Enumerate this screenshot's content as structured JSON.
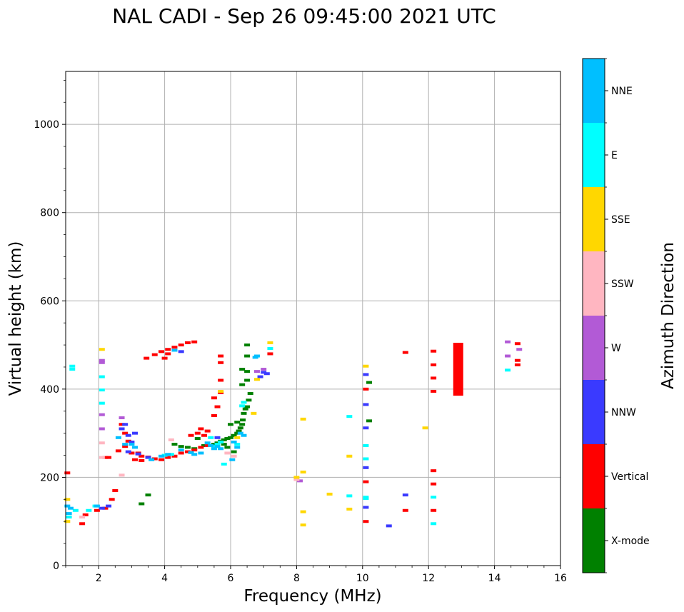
{
  "chart_data": {
    "type": "scatter",
    "title": "NAL CADI - Sep 26 09:45:00 2021 UTC",
    "xlabel": "Frequency (MHz)",
    "ylabel": "Virtual height (km)",
    "xlim": [
      1,
      16
    ],
    "ylim": [
      0,
      1120
    ],
    "xticks": [
      2,
      4,
      6,
      8,
      10,
      12,
      14,
      16
    ],
    "xtick_labels": [
      "2",
      "4",
      "6",
      "8",
      "10",
      "12",
      "14",
      "16"
    ],
    "yticks": [
      0,
      200,
      400,
      600,
      800,
      1000
    ],
    "ytick_labels": [
      "0",
      "200",
      "400",
      "600",
      "800",
      "1000"
    ],
    "grid": true,
    "colorbar": {
      "label": "Azimuth Direction",
      "categories": [
        "X-mode",
        "Vertical",
        "NNW",
        "W",
        "SSW",
        "SSE",
        "E",
        "NNE"
      ],
      "colors": [
        "#008000",
        "#ff0000",
        "#3a3aff",
        "#b25ad6",
        "#ffb6c1",
        "#ffd700",
        "#00ffff",
        "#00bfff"
      ]
    },
    "series": [
      {
        "name": "X-mode",
        "points": [
          [
            4.5,
            270
          ],
          [
            4.7,
            268
          ],
          [
            5.2,
            272
          ],
          [
            5.5,
            275
          ],
          [
            5.6,
            278
          ],
          [
            5.7,
            282
          ],
          [
            5.8,
            285
          ],
          [
            5.9,
            288
          ],
          [
            6.0,
            290
          ],
          [
            6.1,
            295
          ],
          [
            6.2,
            300
          ],
          [
            6.25,
            305
          ],
          [
            6.3,
            312
          ],
          [
            6.35,
            320
          ],
          [
            6.37,
            330
          ],
          [
            6.4,
            345
          ],
          [
            6.45,
            355
          ],
          [
            6.5,
            360
          ],
          [
            6.55,
            375
          ],
          [
            6.6,
            390
          ],
          [
            6.35,
            410
          ],
          [
            6.5,
            420
          ],
          [
            6.35,
            445
          ],
          [
            6.5,
            440
          ],
          [
            6.5,
            475
          ],
          [
            6.5,
            500
          ],
          [
            6.2,
            325
          ],
          [
            6.0,
            320
          ],
          [
            6.1,
            258
          ],
          [
            5.8,
            275
          ],
          [
            5.9,
            268
          ],
          [
            3.5,
            160
          ],
          [
            3.3,
            140
          ],
          [
            4.3,
            275
          ],
          [
            4.9,
            265
          ],
          [
            5.0,
            288
          ],
          [
            10.2,
            415
          ],
          [
            10.2,
            328
          ]
        ]
      },
      {
        "name": "Vertical",
        "points": [
          [
            1.05,
            210
          ],
          [
            1.5,
            95
          ],
          [
            1.6,
            115
          ],
          [
            1.95,
            125
          ],
          [
            2.2,
            130
          ],
          [
            2.4,
            150
          ],
          [
            2.5,
            170
          ],
          [
            2.3,
            245
          ],
          [
            2.2,
            245
          ],
          [
            2.6,
            260
          ],
          [
            2.8,
            270
          ],
          [
            2.9,
            282
          ],
          [
            3.0,
            255
          ],
          [
            3.2,
            255
          ],
          [
            3.3,
            248
          ],
          [
            3.5,
            246
          ],
          [
            3.7,
            242
          ],
          [
            3.9,
            240
          ],
          [
            4.1,
            245
          ],
          [
            4.3,
            248
          ],
          [
            4.5,
            255
          ],
          [
            4.7,
            258
          ],
          [
            4.9,
            262
          ],
          [
            5.1,
            268
          ],
          [
            5.3,
            272
          ],
          [
            3.1,
            240
          ],
          [
            3.3,
            238
          ],
          [
            3.45,
            470
          ],
          [
            3.7,
            478
          ],
          [
            3.9,
            485
          ],
          [
            4.1,
            490
          ],
          [
            4.3,
            495
          ],
          [
            4.5,
            500
          ],
          [
            4.7,
            505
          ],
          [
            4.9,
            507
          ],
          [
            4.0,
            470
          ],
          [
            4.1,
            480
          ],
          [
            5.7,
            475
          ],
          [
            5.7,
            460
          ],
          [
            5.5,
            380
          ],
          [
            5.6,
            360
          ],
          [
            5.5,
            340
          ],
          [
            5.7,
            420
          ],
          [
            5.7,
            392
          ],
          [
            5.3,
            305
          ],
          [
            5.2,
            295
          ],
          [
            5.1,
            310
          ],
          [
            5.0,
            300
          ],
          [
            4.8,
            295
          ],
          [
            2.7,
            320
          ],
          [
            2.8,
            300
          ],
          [
            7.2,
            480
          ],
          [
            10.1,
            400
          ],
          [
            10.1,
            190
          ],
          [
            10.1,
            100
          ],
          [
            11.3,
            483
          ],
          [
            11.3,
            125
          ],
          [
            12.15,
            486
          ],
          [
            12.15,
            455
          ],
          [
            12.15,
            425
          ],
          [
            12.15,
            395
          ],
          [
            12.15,
            215
          ],
          [
            12.15,
            185
          ],
          [
            12.15,
            125
          ],
          [
            14.7,
            503
          ],
          [
            14.7,
            465
          ],
          [
            14.7,
            455
          ]
        ]
      },
      {
        "name": "NNW",
        "points": [
          [
            2.7,
            310
          ],
          [
            2.8,
            320
          ],
          [
            2.9,
            295
          ],
          [
            3.0,
            280
          ],
          [
            3.1,
            300
          ],
          [
            2.9,
            258
          ],
          [
            3.2,
            253
          ],
          [
            3.5,
            245
          ],
          [
            2.1,
            130
          ],
          [
            2.3,
            135
          ],
          [
            10.1,
            433
          ],
          [
            10.1,
            365
          ],
          [
            10.1,
            312
          ],
          [
            10.1,
            222
          ],
          [
            10.1,
            132
          ],
          [
            10.8,
            90
          ],
          [
            11.3,
            160
          ],
          [
            12.9,
            433
          ],
          [
            12.9,
            418
          ],
          [
            7.0,
            438
          ],
          [
            6.9,
            428
          ],
          [
            7.1,
            435
          ],
          [
            5.6,
            290
          ],
          [
            4.5,
            485
          ]
        ]
      },
      {
        "name": "W",
        "points": [
          [
            2.1,
            465
          ],
          [
            2.1,
            460
          ],
          [
            2.1,
            342
          ],
          [
            2.1,
            310
          ],
          [
            6.8,
            440
          ],
          [
            7.0,
            445
          ],
          [
            8.1,
            192
          ],
          [
            14.4,
            507
          ],
          [
            14.4,
            475
          ],
          [
            14.75,
            490
          ],
          [
            2.7,
            335
          ]
        ]
      },
      {
        "name": "SSW",
        "points": [
          [
            2.1,
            278
          ],
          [
            2.1,
            245
          ],
          [
            2.7,
            205
          ],
          [
            4.2,
            285
          ],
          [
            5.9,
            255
          ],
          [
            6.1,
            248
          ],
          [
            8.0,
            195
          ],
          [
            1.5,
            110
          ]
        ]
      },
      {
        "name": "SSE",
        "points": [
          [
            2.1,
            490
          ],
          [
            7.2,
            505
          ],
          [
            6.7,
            345
          ],
          [
            6.8,
            422
          ],
          [
            8.0,
            200
          ],
          [
            8.2,
            332
          ],
          [
            8.2,
            212
          ],
          [
            8.2,
            122
          ],
          [
            8.2,
            92
          ],
          [
            9.0,
            162
          ],
          [
            9.6,
            248
          ],
          [
            9.6,
            128
          ],
          [
            10.1,
            452
          ],
          [
            11.9,
            312
          ],
          [
            1.05,
            100
          ],
          [
            1.05,
            150
          ],
          [
            5.7,
            395
          ],
          [
            6.2,
            290
          ]
        ]
      },
      {
        "name": "E",
        "points": [
          [
            1.2,
            452
          ],
          [
            1.2,
            445
          ],
          [
            2.1,
            428
          ],
          [
            2.1,
            398
          ],
          [
            2.1,
            368
          ],
          [
            6.4,
            370
          ],
          [
            6.35,
            362
          ],
          [
            5.5,
            270
          ],
          [
            5.6,
            275
          ],
          [
            5.7,
            280
          ],
          [
            6.2,
            275
          ],
          [
            5.8,
            230
          ],
          [
            7.2,
            492
          ],
          [
            1.1,
            110
          ],
          [
            1.3,
            125
          ],
          [
            1.9,
            135
          ],
          [
            9.6,
            338
          ],
          [
            9.6,
            158
          ],
          [
            10.1,
            272
          ],
          [
            10.1,
            242
          ],
          [
            10.1,
            155
          ],
          [
            10.1,
            152
          ],
          [
            12.15,
            155
          ],
          [
            12.15,
            95
          ],
          [
            14.4,
            443
          ],
          [
            4.0,
            250
          ],
          [
            4.2,
            252
          ],
          [
            5.4,
            290
          ],
          [
            1.7,
            125
          ]
        ]
      },
      {
        "name": "NNE",
        "points": [
          [
            1.1,
            118
          ],
          [
            1.05,
            135
          ],
          [
            1.15,
            130
          ],
          [
            1.95,
            135
          ],
          [
            2.6,
            290
          ],
          [
            2.8,
            275
          ],
          [
            3.0,
            275
          ],
          [
            3.1,
            268
          ],
          [
            3.6,
            240
          ],
          [
            3.9,
            248
          ],
          [
            4.1,
            252
          ],
          [
            4.3,
            488
          ],
          [
            5.3,
            278
          ],
          [
            5.4,
            272
          ],
          [
            5.5,
            265
          ],
          [
            5.6,
            270
          ],
          [
            5.7,
            265
          ],
          [
            6.05,
            240
          ],
          [
            6.3,
            300
          ],
          [
            6.4,
            295
          ],
          [
            6.1,
            280
          ],
          [
            6.2,
            268
          ],
          [
            4.5,
            262
          ],
          [
            4.8,
            256
          ],
          [
            4.9,
            252
          ],
          [
            5.1,
            255
          ],
          [
            6.8,
            475
          ],
          [
            6.75,
            472
          ]
        ]
      }
    ],
    "bars": [
      {
        "name": "Vertical",
        "x": 12.9,
        "y0": 385,
        "y1": 505
      }
    ]
  }
}
